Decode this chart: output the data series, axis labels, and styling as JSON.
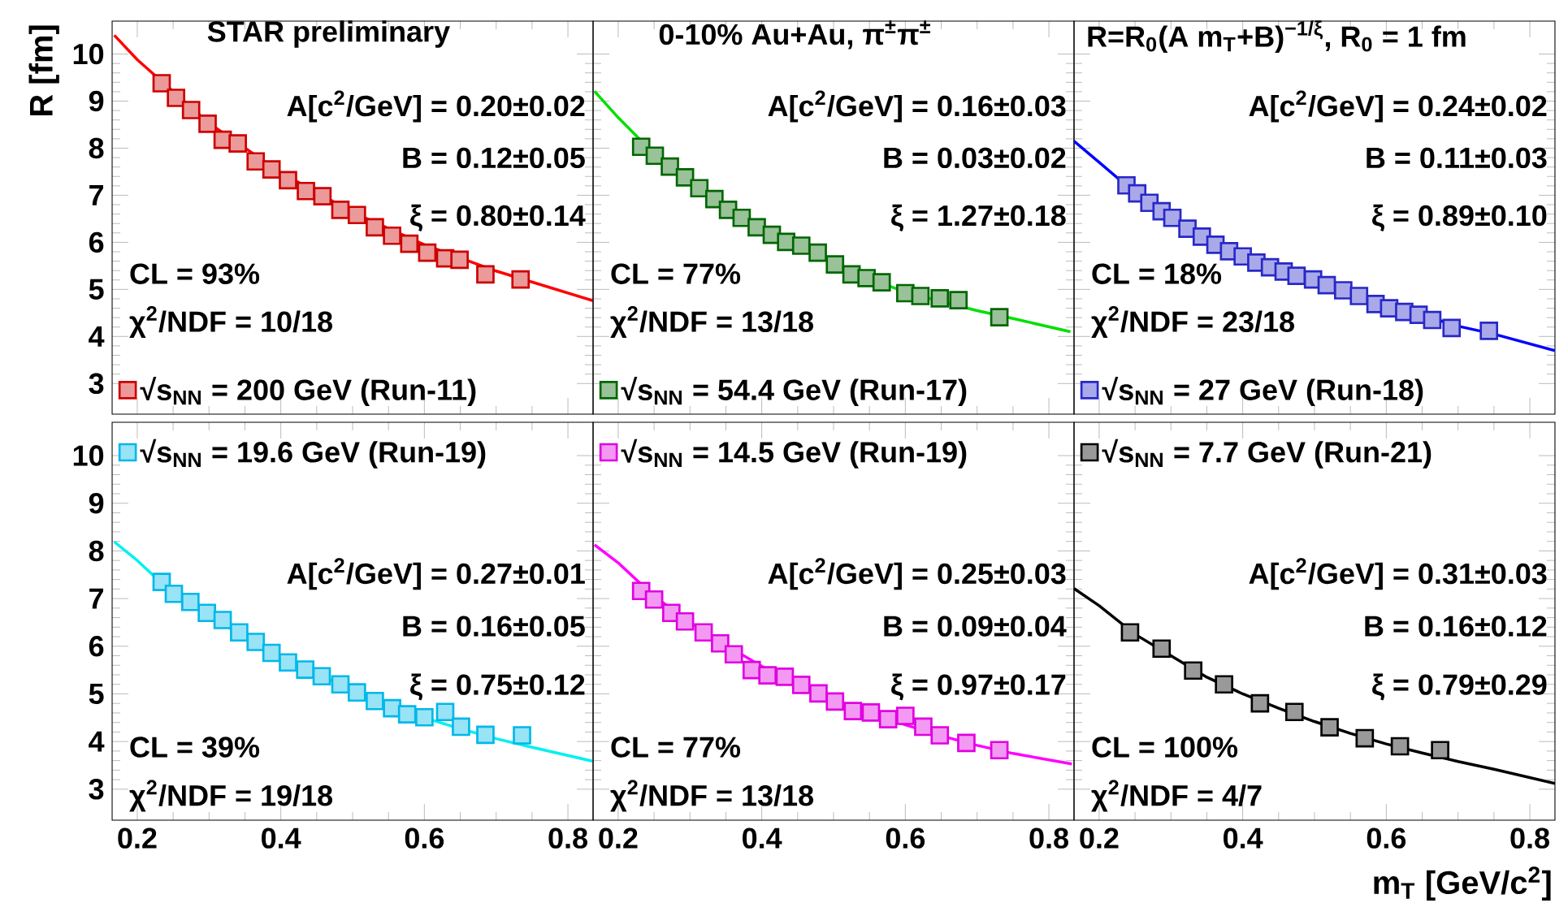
{
  "chart_data": [
    {
      "type": "scatter",
      "title": "STAR preliminary",
      "ylabel": "R [fm]",
      "xlim": [
        0.165,
        0.835
      ],
      "ylim": [
        2.35,
        10.7
      ],
      "xticks": [
        0.2,
        0.4,
        0.6,
        0.8
      ],
      "yticks": [
        3,
        4,
        5,
        6,
        7,
        8,
        9,
        10
      ],
      "tick_labels": "y",
      "legend": "bottom left",
      "annotations": [
        "A[c$^{2}$/GeV] = 0.20±0.02",
        "B = 0.12±0.05",
        "ξ = 0.80±0.14",
        "CL = 93%",
        "χ$^{2}$/NDF = 10/18"
      ],
      "series": [
        {
          "name": "√s$_{NN}$ = 200 GeV (Run-11)",
          "color": "#cc0000",
          "marker": "square",
          "x": [
            0.234,
            0.254,
            0.275,
            0.298,
            0.319,
            0.34,
            0.365,
            0.387,
            0.41,
            0.435,
            0.458,
            0.483,
            0.506,
            0.531,
            0.555,
            0.579,
            0.604,
            0.629,
            0.649,
            0.685,
            0.734
          ],
          "values": [
            9.38,
            9.07,
            8.81,
            8.52,
            8.18,
            8.1,
            7.72,
            7.55,
            7.32,
            7.09,
            6.98,
            6.69,
            6.58,
            6.32,
            6.14,
            5.97,
            5.78,
            5.66,
            5.63,
            5.32,
            5.21
          ]
        },
        {
          "type": "line",
          "color": "#ff0000",
          "x": [
            0.168,
            0.2,
            0.3,
            0.4,
            0.5,
            0.6,
            0.7,
            0.835
          ],
          "values": [
            10.4,
            9.88,
            8.53,
            7.48,
            6.64,
            5.95,
            5.39,
            4.76
          ]
        }
      ]
    },
    {
      "type": "scatter",
      "title": "0-10% Au+Au, π$^{±}$π$^{±}$",
      "xlim": [
        0.165,
        0.835
      ],
      "ylim": [
        2.35,
        10.7
      ],
      "xticks": [
        0.2,
        0.4,
        0.6,
        0.8
      ],
      "yticks": [
        3,
        4,
        5,
        6,
        7,
        8,
        9,
        10
      ],
      "tick_labels": false,
      "legend": "bottom left",
      "annotations": [
        "A[c$^{2}$/GeV] = 0.16±0.03",
        "B = 0.03±0.02",
        "ξ = 1.27±0.18",
        "CL = 77%",
        "χ$^{2}$/NDF = 13/18"
      ],
      "series": [
        {
          "name": "√s$_{NN}$ = 54.4 GeV (Run-17)",
          "color": "#006600",
          "marker": "square",
          "x": [
            0.232,
            0.251,
            0.272,
            0.293,
            0.313,
            0.334,
            0.353,
            0.372,
            0.393,
            0.414,
            0.434,
            0.455,
            0.478,
            0.502,
            0.525,
            0.546,
            0.567,
            0.6,
            0.621,
            0.648,
            0.674,
            0.731
          ],
          "values": [
            8.03,
            7.84,
            7.61,
            7.38,
            7.15,
            6.92,
            6.69,
            6.52,
            6.32,
            6.16,
            6.01,
            5.93,
            5.78,
            5.53,
            5.32,
            5.24,
            5.15,
            4.92,
            4.86,
            4.81,
            4.77,
            4.41
          ]
        },
        {
          "type": "line",
          "color": "#00e000",
          "x": [
            0.167,
            0.2,
            0.25,
            0.3,
            0.35,
            0.4,
            0.45,
            0.5,
            0.55,
            0.6,
            0.65,
            0.7,
            0.75,
            0.83
          ],
          "values": [
            9.21,
            8.65,
            7.88,
            7.3,
            6.78,
            6.3,
            5.93,
            5.58,
            5.22,
            4.95,
            4.74,
            4.55,
            4.38,
            4.1
          ]
        }
      ]
    },
    {
      "type": "scatter",
      "title": "R=R$_{0}$(A m$_{T}$+B)$^{−1/ξ}$, R$_{0}$ = 1 fm",
      "xlim": [
        0.165,
        0.835
      ],
      "ylim": [
        2.35,
        10.7
      ],
      "xticks": [
        0.2,
        0.4,
        0.6,
        0.8
      ],
      "yticks": [
        3,
        4,
        5,
        6,
        7,
        8,
        9,
        10
      ],
      "tick_labels": false,
      "legend": "bottom left",
      "annotations": [
        "A[c$^{2}$/GeV] = 0.24±0.02",
        "B = 0.11±0.03",
        "ξ = 0.89±0.10",
        "CL = 18%",
        "χ$^{2}$/NDF = 23/18"
      ],
      "series": [
        {
          "name": "√s$_{NN}$ = 27 GeV (Run-18)",
          "color": "#2828c8",
          "marker": "square",
          "x": [
            0.238,
            0.253,
            0.27,
            0.287,
            0.302,
            0.323,
            0.343,
            0.362,
            0.381,
            0.4,
            0.419,
            0.438,
            0.457,
            0.475,
            0.498,
            0.517,
            0.54,
            0.562,
            0.585,
            0.604,
            0.625,
            0.645,
            0.664,
            0.691,
            0.743
          ],
          "values": [
            7.21,
            7.04,
            6.84,
            6.66,
            6.52,
            6.29,
            6.12,
            5.95,
            5.81,
            5.7,
            5.57,
            5.47,
            5.38,
            5.29,
            5.21,
            5.09,
            4.98,
            4.86,
            4.69,
            4.6,
            4.52,
            4.46,
            4.35,
            4.18,
            4.12
          ]
        },
        {
          "type": "line",
          "color": "#0000ff",
          "x": [
            0.165,
            0.2,
            0.25,
            0.3,
            0.35,
            0.4,
            0.45,
            0.5,
            0.55,
            0.6,
            0.65,
            0.7,
            0.75,
            0.835
          ],
          "values": [
            8.15,
            7.7,
            7.05,
            6.55,
            6.08,
            5.7,
            5.4,
            5.14,
            4.91,
            4.67,
            4.45,
            4.22,
            4.05,
            3.7
          ]
        }
      ]
    },
    {
      "type": "scatter",
      "xlim": [
        0.165,
        0.835
      ],
      "ylim": [
        2.35,
        10.7
      ],
      "xticks": [
        0.2,
        0.4,
        0.6,
        0.8
      ],
      "yticks": [
        3,
        4,
        5,
        6,
        7,
        8,
        9,
        10
      ],
      "legend": "top left",
      "annotations": [
        "A[c$^{2}$/GeV] = 0.27±0.01",
        "B = 0.16±0.05",
        "ξ = 0.75±0.12",
        "CL = 39%",
        "χ$^{2}$/NDF = 19/18"
      ],
      "series": [
        {
          "name": "√s$_{NN}$ = 19.6 GeV (Run-19)",
          "color": "#00b8e8",
          "marker": "square",
          "x": [
            0.234,
            0.251,
            0.274,
            0.297,
            0.319,
            0.342,
            0.365,
            0.387,
            0.41,
            0.434,
            0.457,
            0.483,
            0.506,
            0.531,
            0.555,
            0.576,
            0.6,
            0.629,
            0.651,
            0.685,
            0.736
          ],
          "values": [
            7.35,
            7.1,
            6.93,
            6.7,
            6.55,
            6.29,
            6.09,
            5.86,
            5.66,
            5.51,
            5.37,
            5.2,
            5.03,
            4.85,
            4.7,
            4.57,
            4.51,
            4.62,
            4.31,
            4.14,
            4.13
          ]
        },
        {
          "type": "line",
          "color": "#00f0f0",
          "x": [
            0.168,
            0.2,
            0.25,
            0.3,
            0.35,
            0.4,
            0.45,
            0.5,
            0.55,
            0.6,
            0.65,
            0.7,
            0.75,
            0.834
          ],
          "values": [
            8.19,
            7.8,
            7.1,
            6.62,
            6.2,
            5.8,
            5.42,
            5.08,
            4.78,
            4.5,
            4.27,
            4.06,
            3.88,
            3.59
          ]
        }
      ]
    },
    {
      "type": "scatter",
      "xlim": [
        0.165,
        0.835
      ],
      "ylim": [
        2.35,
        10.7
      ],
      "xticks": [
        0.2,
        0.4,
        0.6,
        0.8
      ],
      "yticks": [
        3,
        4,
        5,
        6,
        7,
        8,
        9,
        10
      ],
      "tick_labels": "x",
      "legend": "top left",
      "annotations": [
        "A[c$^{2}$/GeV] = 0.25±0.03",
        "B = 0.09±0.04",
        "ξ = 0.97±0.17",
        "CL = 77%",
        "χ$^{2}$/NDF = 13/18"
      ],
      "series": [
        {
          "name": "√s$_{NN}$ = 14.5 GeV (Run-19)",
          "color": "#e000e0",
          "marker": "square",
          "x": [
            0.232,
            0.25,
            0.274,
            0.293,
            0.319,
            0.342,
            0.361,
            0.386,
            0.408,
            0.432,
            0.455,
            0.479,
            0.502,
            0.527,
            0.552,
            0.576,
            0.6,
            0.625,
            0.648,
            0.685,
            0.731
          ],
          "values": [
            7.16,
            6.98,
            6.7,
            6.52,
            6.29,
            6.06,
            5.83,
            5.5,
            5.39,
            5.36,
            5.19,
            5.01,
            4.84,
            4.64,
            4.61,
            4.47,
            4.54,
            4.31,
            4.13,
            3.97,
            3.82
          ]
        },
        {
          "type": "line",
          "color": "#ff00ff",
          "x": [
            0.167,
            0.2,
            0.25,
            0.3,
            0.35,
            0.4,
            0.45,
            0.5,
            0.55,
            0.6,
            0.65,
            0.7,
            0.75,
            0.832
          ],
          "values": [
            8.13,
            7.75,
            7.05,
            6.5,
            6.02,
            5.58,
            5.2,
            4.88,
            4.6,
            4.35,
            4.12,
            3.92,
            3.75,
            3.53
          ]
        }
      ]
    },
    {
      "type": "scatter",
      "xlabel": "m$_{T}$ [GeV/c$^{2}$]",
      "xlim": [
        0.165,
        0.835
      ],
      "ylim": [
        2.35,
        10.7
      ],
      "xticks": [
        0.2,
        0.4,
        0.6,
        0.8
      ],
      "yticks": [
        3,
        4,
        5,
        6,
        7,
        8,
        9,
        10
      ],
      "tick_labels": "x",
      "legend": "top left",
      "annotations": [
        "A[c$^{2}$/GeV] = 0.31±0.03",
        "B = 0.16±0.12",
        "ξ = 0.79±0.29",
        "CL = 100%",
        "χ$^{2}$/NDF = 4/7"
      ],
      "series": [
        {
          "name": "√s$_{NN}$ = 7.7 GeV (Run-21)",
          "color": "#000000",
          "marker": "square",
          "x": [
            0.243,
            0.287,
            0.331,
            0.374,
            0.424,
            0.472,
            0.521,
            0.57,
            0.619,
            0.675
          ],
          "values": [
            6.29,
            5.95,
            5.49,
            5.2,
            4.8,
            4.62,
            4.3,
            4.07,
            3.9,
            3.82
          ]
        },
        {
          "type": "line",
          "color": "#000000",
          "x": [
            0.165,
            0.2,
            0.25,
            0.3,
            0.35,
            0.4,
            0.45,
            0.5,
            0.55,
            0.6,
            0.65,
            0.7,
            0.75,
            0.835
          ],
          "values": [
            7.21,
            6.85,
            6.25,
            5.8,
            5.35,
            5.0,
            4.7,
            4.42,
            4.17,
            3.95,
            3.76,
            3.58,
            3.42,
            3.12
          ]
        }
      ]
    }
  ]
}
